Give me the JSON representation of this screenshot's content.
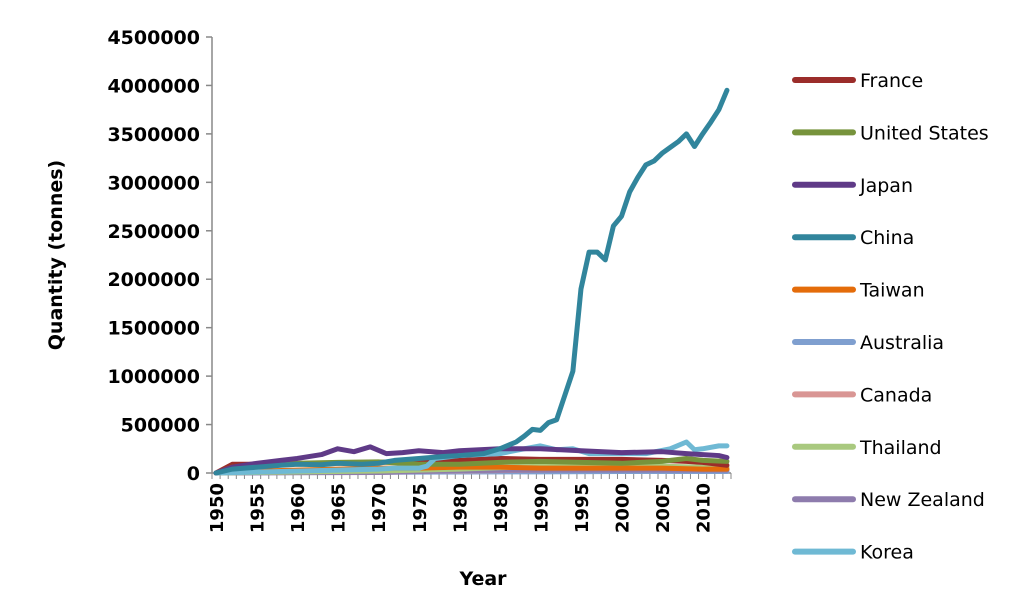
{
  "chart_data": {
    "type": "line",
    "title": "",
    "xlabel": "Year",
    "ylabel": "Quantity (tonnes)",
    "xlim": [
      1950,
      2013
    ],
    "ylim": [
      0,
      4500000
    ],
    "yticks": [
      0,
      500000,
      1000000,
      1500000,
      2000000,
      2500000,
      3000000,
      3500000,
      4000000,
      4500000
    ],
    "xticks": [
      1950,
      1955,
      1960,
      1965,
      1970,
      1975,
      1980,
      1985,
      1990,
      1995,
      2000,
      2005,
      2010
    ],
    "grid": false,
    "legend": "right",
    "series": [
      {
        "name": "France",
        "color": "#9b2d2a",
        "x": [
          1950,
          1952,
          1955,
          1960,
          1965,
          1970,
          1975,
          1980,
          1985,
          1990,
          1995,
          2000,
          2005,
          2008,
          2010,
          2013
        ],
        "y": [
          0,
          90000,
          90000,
          95000,
          100000,
          110000,
          120000,
          130000,
          150000,
          140000,
          140000,
          140000,
          130000,
          120000,
          110000,
          80000
        ]
      },
      {
        "name": "United States",
        "color": "#77933c",
        "x": [
          1950,
          1952,
          1955,
          1960,
          1965,
          1970,
          1975,
          1980,
          1985,
          1990,
          1995,
          2000,
          2005,
          2008,
          2010,
          2013
        ],
        "y": [
          0,
          60000,
          90000,
          100000,
          110000,
          115000,
          90000,
          90000,
          110000,
          120000,
          110000,
          100000,
          120000,
          150000,
          130000,
          120000
        ]
      },
      {
        "name": "Japan",
        "color": "#5f3a87",
        "x": [
          1950,
          1952,
          1955,
          1958,
          1960,
          1963,
          1965,
          1967,
          1969,
          1971,
          1973,
          1975,
          1978,
          1980,
          1985,
          1990,
          1995,
          2000,
          2005,
          2008,
          2010,
          2012,
          2013
        ],
        "y": [
          0,
          60000,
          100000,
          130000,
          150000,
          190000,
          250000,
          220000,
          270000,
          200000,
          210000,
          230000,
          210000,
          230000,
          250000,
          250000,
          230000,
          210000,
          220000,
          200000,
          190000,
          180000,
          160000
        ]
      },
      {
        "name": "China",
        "color": "#31859c",
        "x": [
          1950,
          1952,
          1955,
          1958,
          1960,
          1963,
          1965,
          1968,
          1970,
          1972,
          1975,
          1978,
          1980,
          1983,
          1985,
          1987,
          1988,
          1989,
          1990,
          1991,
          1992,
          1993,
          1994,
          1995,
          1996,
          1997,
          1998,
          1999,
          2000,
          2001,
          2002,
          2003,
          2004,
          2005,
          2006,
          2007,
          2008,
          2009,
          2010,
          2011,
          2012,
          2013
        ],
        "y": [
          0,
          40000,
          60000,
          80000,
          90000,
          85000,
          100000,
          90000,
          100000,
          130000,
          150000,
          170000,
          180000,
          200000,
          250000,
          320000,
          380000,
          450000,
          440000,
          520000,
          550000,
          800000,
          1050000,
          1900000,
          2280000,
          2280000,
          2200000,
          2550000,
          2650000,
          2900000,
          3050000,
          3180000,
          3220000,
          3300000,
          3360000,
          3420000,
          3500000,
          3370000,
          3500000,
          3620000,
          3750000,
          3950000
        ]
      },
      {
        "name": "Taiwan",
        "color": "#e46c0a",
        "x": [
          1950,
          1955,
          1960,
          1965,
          1970,
          1975,
          1980,
          1985,
          1990,
          1995,
          2000,
          2005,
          2010,
          2013
        ],
        "y": [
          0,
          20000,
          30000,
          40000,
          50000,
          50000,
          60000,
          60000,
          50000,
          50000,
          50000,
          50000,
          40000,
          40000
        ]
      },
      {
        "name": "Australia",
        "color": "#7f9fcf",
        "x": [
          1950,
          1960,
          1970,
          1980,
          1990,
          2000,
          2010,
          2013
        ],
        "y": [
          0,
          5000,
          8000,
          10000,
          12000,
          15000,
          15000,
          15000
        ]
      },
      {
        "name": "Canada",
        "color": "#d99694",
        "x": [
          1950,
          1960,
          1970,
          1980,
          1990,
          2000,
          2010,
          2013
        ],
        "y": [
          0,
          10000,
          15000,
          20000,
          30000,
          40000,
          40000,
          40000
        ]
      },
      {
        "name": "Thailand",
        "color": "#a9c97f",
        "x": [
          1950,
          1960,
          1970,
          1980,
          1990,
          2000,
          2005,
          2010,
          2013
        ],
        "y": [
          0,
          10000,
          20000,
          40000,
          70000,
          80000,
          70000,
          60000,
          60000
        ]
      },
      {
        "name": "New Zealand",
        "color": "#8e7cad",
        "x": [
          1950,
          1960,
          1970,
          1975,
          1980,
          1990,
          2000,
          2010,
          2013
        ],
        "y": [
          0,
          2000,
          5000,
          15000,
          25000,
          30000,
          30000,
          30000,
          30000
        ]
      },
      {
        "name": "Korea",
        "color": "#6fb9d4",
        "x": [
          1950,
          1960,
          1965,
          1970,
          1972,
          1975,
          1976,
          1977,
          1980,
          1985,
          1988,
          1990,
          1992,
          1994,
          1996,
          1997,
          2000,
          2003,
          2006,
          2008,
          2009,
          2010,
          2012,
          2013
        ],
        "y": [
          0,
          20000,
          30000,
          40000,
          50000,
          50000,
          70000,
          150000,
          180000,
          200000,
          250000,
          280000,
          240000,
          250000,
          200000,
          200000,
          200000,
          200000,
          250000,
          320000,
          240000,
          250000,
          280000,
          280000
        ]
      }
    ]
  }
}
